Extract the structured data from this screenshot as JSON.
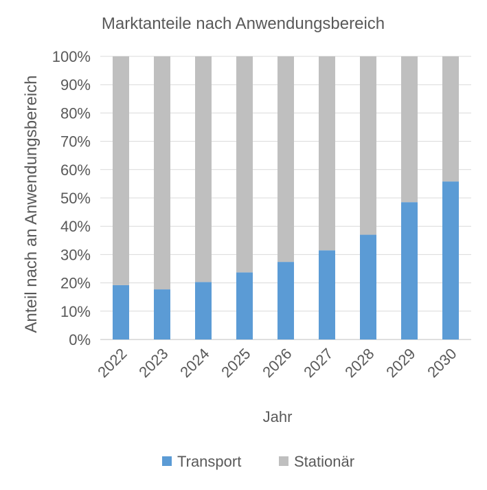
{
  "chart_data": {
    "type": "bar",
    "stacked": true,
    "percent_stacked": true,
    "title": "Marktanteile nach Anwendungsbereich",
    "xlabel": "Jahr",
    "ylabel": "Anteil nach an Anwendungsbereich",
    "categories": [
      "2022",
      "2023",
      "2024",
      "2025",
      "2026",
      "2027",
      "2028",
      "2029",
      "2030"
    ],
    "series": [
      {
        "name": "Transport",
        "color": "#5B9BD5",
        "values": [
          19.2,
          17.7,
          20.3,
          23.7,
          27.4,
          31.5,
          37.0,
          48.5,
          55.8
        ]
      },
      {
        "name": "Stationär",
        "color": "#BFBFBF",
        "values": [
          80.8,
          82.3,
          79.7,
          76.3,
          72.6,
          68.5,
          63.0,
          51.5,
          44.2
        ]
      }
    ],
    "ylim": [
      0,
      100
    ],
    "yticks": [
      "0%",
      "10%",
      "20%",
      "30%",
      "40%",
      "50%",
      "60%",
      "70%",
      "80%",
      "90%",
      "100%"
    ],
    "grid": true,
    "legend": "bottom"
  }
}
